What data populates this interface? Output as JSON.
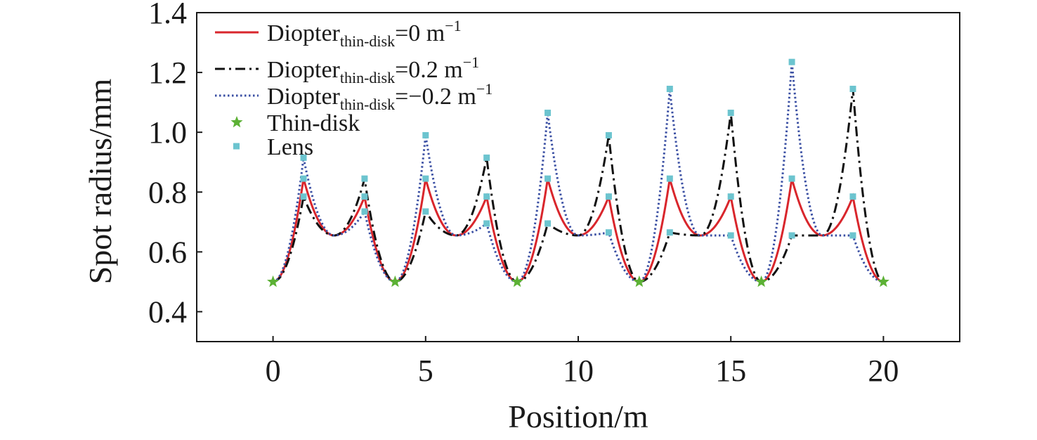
{
  "chart_data": {
    "type": "line",
    "xlabel": "Position/m",
    "ylabel": "Spot radius/mm",
    "xlim": [
      -2.5,
      22.5
    ],
    "ylim": [
      0.3,
      1.4
    ],
    "xticks": [
      "0",
      "5",
      "10",
      "15",
      "20"
    ],
    "xtick_values": [
      0,
      5,
      10,
      15,
      20
    ],
    "yticks": [
      "0.4",
      "0.6",
      "0.8",
      "1.0",
      "1.2",
      "1.4"
    ],
    "ytick_values": [
      0.4,
      0.6,
      0.8,
      1.0,
      1.2,
      1.4
    ],
    "grid": false,
    "legend_position": "top-left",
    "series": [
      {
        "name": "Diopter",
        "name_sub": "thin-disk",
        "name_suffix": "=0 m",
        "name_sup": "−1",
        "style": "solid",
        "color": "#d9262c",
        "x": [
          0,
          1,
          2,
          3,
          4,
          5,
          6,
          7,
          8,
          9,
          10,
          11,
          12,
          13,
          14,
          15,
          16,
          17,
          18,
          19,
          20
        ],
        "y": [
          0.5,
          0.845,
          0.655,
          0.785,
          0.5,
          0.845,
          0.655,
          0.785,
          0.5,
          0.845,
          0.655,
          0.785,
          0.5,
          0.845,
          0.655,
          0.785,
          0.5,
          0.845,
          0.655,
          0.785,
          0.5
        ]
      },
      {
        "name": "Diopter",
        "name_sub": "thin-disk",
        "name_suffix": "=0.2 m",
        "name_sup": "−1",
        "style": "dashdot",
        "color": "#111111",
        "x": [
          0,
          1,
          2,
          3,
          4,
          5,
          6,
          7,
          8,
          9,
          10,
          11,
          12,
          13,
          14,
          15,
          16,
          17,
          18,
          19,
          20
        ],
        "y": [
          0.5,
          0.785,
          0.655,
          0.845,
          0.5,
          0.735,
          0.655,
          0.915,
          0.5,
          0.695,
          0.655,
          0.99,
          0.5,
          0.665,
          0.655,
          1.065,
          0.5,
          0.655,
          0.655,
          1.145,
          0.5
        ]
      },
      {
        "name": "Diopter",
        "name_sub": "thin-disk",
        "name_suffix": "=−0.2 m",
        "name_sup": "−1",
        "style": "dotted",
        "color": "#3a4fa3",
        "x": [
          0,
          1,
          2,
          3,
          4,
          5,
          6,
          7,
          8,
          9,
          10,
          11,
          12,
          13,
          14,
          15,
          16,
          17,
          18,
          19,
          20
        ],
        "y": [
          0.5,
          0.915,
          0.655,
          0.735,
          0.5,
          0.99,
          0.655,
          0.695,
          0.5,
          1.065,
          0.655,
          0.665,
          0.5,
          1.145,
          0.655,
          0.655,
          0.5,
          1.235,
          0.655,
          0.655,
          0.5
        ]
      }
    ],
    "markers": [
      {
        "name": "Thin-disk",
        "shape": "star",
        "color": "#5cb135",
        "x": [
          0,
          4,
          8,
          12,
          16,
          20
        ],
        "y": [
          0.5,
          0.5,
          0.5,
          0.5,
          0.5,
          0.5
        ]
      },
      {
        "name": "Lens",
        "shape": "square",
        "color": "#6cc4cf",
        "x": [
          1,
          1,
          1,
          3,
          3,
          3,
          5,
          5,
          5,
          7,
          7,
          7,
          9,
          9,
          9,
          11,
          11,
          11,
          13,
          13,
          13,
          15,
          15,
          15,
          17,
          17,
          17,
          19,
          19,
          19
        ],
        "y": [
          0.845,
          0.785,
          0.915,
          0.785,
          0.845,
          0.735,
          0.845,
          0.735,
          0.99,
          0.785,
          0.915,
          0.695,
          0.845,
          0.695,
          1.065,
          0.785,
          0.99,
          0.665,
          0.845,
          0.665,
          1.145,
          0.785,
          1.065,
          0.655,
          0.845,
          0.655,
          1.235,
          0.785,
          1.145,
          0.655
        ]
      }
    ]
  }
}
